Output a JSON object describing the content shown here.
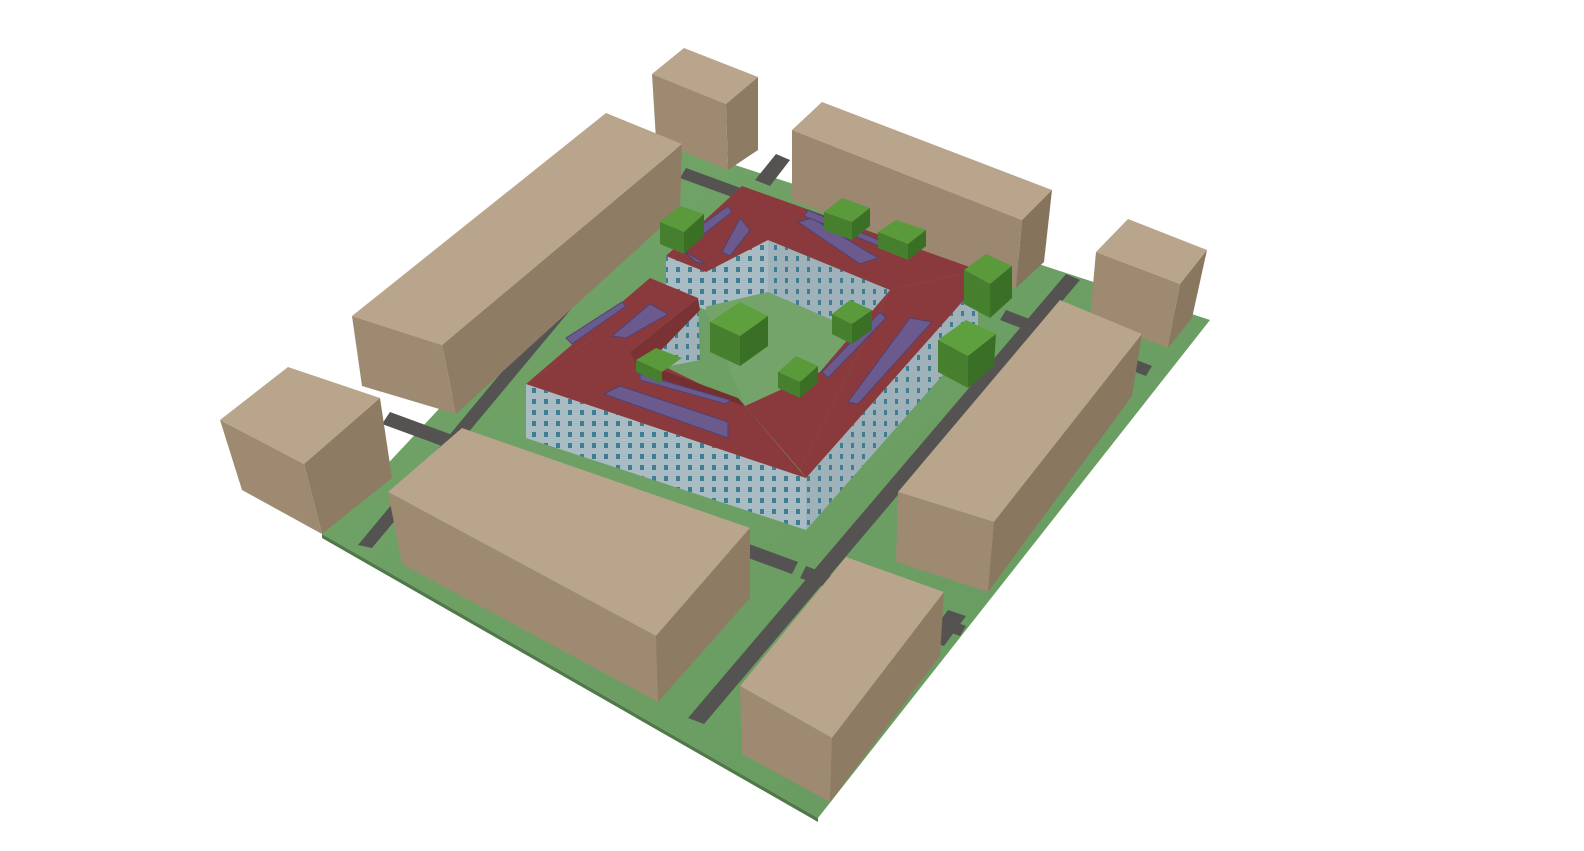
{
  "scene": {
    "subject": "3d-city-block-massing-model",
    "colors": {
      "background": "#ffffff",
      "ground": "#6e9f66",
      "street": "#555352",
      "neighbor_top": "#b8a58c",
      "neighbor_left": "#9e8a71",
      "neighbor_right": "#8a775f",
      "roof": "#8a3a3c",
      "roof_dark": "#6f2c2e",
      "facade": "#a9bcc4",
      "facade_dark": "#8fa3ad",
      "window": "#3f7d92",
      "solar_panel": "#6b5a8e",
      "tree_top": "#5a9a3a",
      "tree_side": "#3f7a2a",
      "courtyard": "#6e9f66"
    },
    "icons": {
      "neighbor": "box-building-icon",
      "tree": "cube-tree-icon",
      "solar": "solar-panel-icon"
    }
  }
}
